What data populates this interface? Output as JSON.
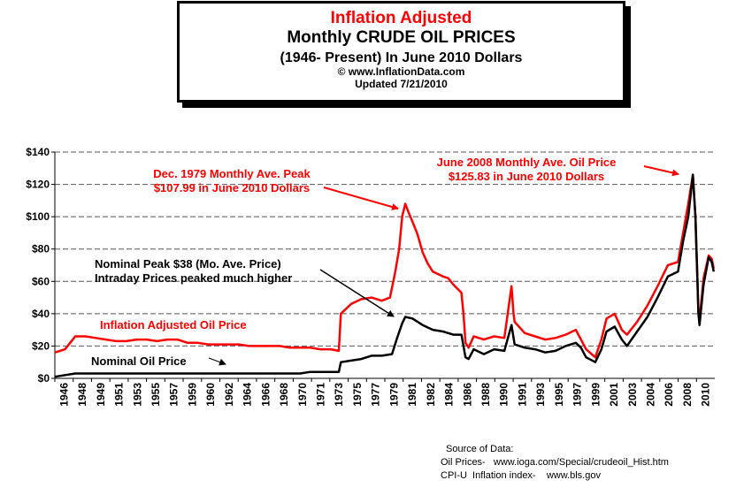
{
  "title": {
    "line1": "Inflation Adjusted",
    "line2": "Monthly CRUDE OIL PRICES",
    "line3": "(1946- Present) In June 2010 Dollars",
    "line4": "© www.InflationData.com",
    "line5": "Updated 7/21/2010"
  },
  "source": {
    "heading": "Source of Data:",
    "oil": "Oil Prices-   www.ioga.com/Special/crudeoil_Hist.htm",
    "cpi": "CPI-U  Inflation index-    www.bls.gov"
  },
  "chart_data": {
    "type": "line",
    "title": "Inflation Adjusted Monthly CRUDE OIL PRICES",
    "xlabel": "",
    "ylabel": "",
    "xlim": [
      1946,
      2010.6
    ],
    "ylim": [
      0,
      140
    ],
    "grid": "horizontal dashed",
    "y_ticks": [
      "$0",
      "$20",
      "$40",
      "$60",
      "$80",
      "$100",
      "$120",
      "$140"
    ],
    "y_tick_values": [
      0,
      20,
      40,
      60,
      80,
      100,
      120,
      140
    ],
    "x_ticks": [
      "1946",
      "1948",
      "1949",
      "1951",
      "1953",
      "1955",
      "1957",
      "1959",
      "1960",
      "1962",
      "1964",
      "1966",
      "1968",
      "1970",
      "1971",
      "1973",
      "1975",
      "1977",
      "1979",
      "1981",
      "1982",
      "1984",
      "1986",
      "1988",
      "1990",
      "1991",
      "1993",
      "1995",
      "1997",
      "1999",
      "2001",
      "2003",
      "2004",
      "2006",
      "2008",
      "2010"
    ],
    "series": [
      {
        "name": "Inflation Adjusted Oil Price",
        "color": "#ff0000",
        "points": [
          [
            1946.0,
            16
          ],
          [
            1946.5,
            17
          ],
          [
            1947.0,
            18
          ],
          [
            1947.5,
            22
          ],
          [
            1948.0,
            26
          ],
          [
            1949.0,
            26
          ],
          [
            1950.0,
            25
          ],
          [
            1951.0,
            24
          ],
          [
            1952.0,
            23
          ],
          [
            1953.0,
            23
          ],
          [
            1954.0,
            24
          ],
          [
            1955.0,
            24
          ],
          [
            1956.0,
            23
          ],
          [
            1957.0,
            24
          ],
          [
            1958.0,
            24
          ],
          [
            1959.0,
            22
          ],
          [
            1960.0,
            22
          ],
          [
            1961.0,
            21
          ],
          [
            1962.0,
            21
          ],
          [
            1963.0,
            21
          ],
          [
            1964.0,
            21
          ],
          [
            1965.0,
            20
          ],
          [
            1966.0,
            20
          ],
          [
            1967.0,
            20
          ],
          [
            1968.0,
            20
          ],
          [
            1969.0,
            19
          ],
          [
            1970.0,
            19
          ],
          [
            1971.0,
            19
          ],
          [
            1972.0,
            18
          ],
          [
            1973.0,
            18
          ],
          [
            1973.8,
            17
          ],
          [
            1974.0,
            40
          ],
          [
            1974.5,
            43
          ],
          [
            1975.0,
            46
          ],
          [
            1976.0,
            49
          ],
          [
            1977.0,
            50
          ],
          [
            1978.0,
            48
          ],
          [
            1978.8,
            50
          ],
          [
            1979.3,
            65
          ],
          [
            1979.7,
            80
          ],
          [
            1980.0,
            100
          ],
          [
            1980.3,
            108
          ],
          [
            1980.6,
            103
          ],
          [
            1981.0,
            97
          ],
          [
            1981.5,
            89
          ],
          [
            1982.0,
            78
          ],
          [
            1982.5,
            71
          ],
          [
            1983.0,
            66
          ],
          [
            1984.0,
            63
          ],
          [
            1984.5,
            62
          ],
          [
            1985.0,
            58
          ],
          [
            1985.8,
            53
          ],
          [
            1986.0,
            40
          ],
          [
            1986.2,
            22
          ],
          [
            1986.5,
            19
          ],
          [
            1987.0,
            26
          ],
          [
            1988.0,
            24
          ],
          [
            1989.0,
            26
          ],
          [
            1990.0,
            25
          ],
          [
            1990.7,
            57
          ],
          [
            1990.9,
            40
          ],
          [
            1991.0,
            35
          ],
          [
            1992.0,
            28
          ],
          [
            1993.0,
            26
          ],
          [
            1994.0,
            24
          ],
          [
            1995.0,
            25
          ],
          [
            1996.0,
            27
          ],
          [
            1997.0,
            30
          ],
          [
            1997.5,
            24
          ],
          [
            1998.0,
            18
          ],
          [
            1998.9,
            13
          ],
          [
            1999.5,
            24
          ],
          [
            2000.0,
            37
          ],
          [
            2000.8,
            40
          ],
          [
            2001.5,
            30
          ],
          [
            2002.0,
            27
          ],
          [
            2003.0,
            35
          ],
          [
            2004.0,
            45
          ],
          [
            2005.0,
            57
          ],
          [
            2006.0,
            70
          ],
          [
            2007.0,
            72
          ],
          [
            2007.5,
            90
          ],
          [
            2008.0,
            108
          ],
          [
            2008.45,
            126
          ],
          [
            2008.7,
            100
          ],
          [
            2008.9,
            60
          ],
          [
            2009.0,
            40
          ],
          [
            2009.1,
            36
          ],
          [
            2009.5,
            62
          ],
          [
            2010.0,
            76
          ],
          [
            2010.3,
            74
          ],
          [
            2010.5,
            68
          ]
        ]
      },
      {
        "name": "Nominal Oil Price",
        "color": "#000000",
        "points": [
          [
            1946.0,
            1
          ],
          [
            1947.0,
            2
          ],
          [
            1948.0,
            3
          ],
          [
            1950.0,
            3
          ],
          [
            1955.0,
            3
          ],
          [
            1957.0,
            3
          ],
          [
            1958.0,
            3
          ],
          [
            1960.0,
            3
          ],
          [
            1965.0,
            3
          ],
          [
            1969.0,
            3
          ],
          [
            1970.0,
            3
          ],
          [
            1971.0,
            4
          ],
          [
            1973.0,
            4
          ],
          [
            1973.8,
            4
          ],
          [
            1974.0,
            10
          ],
          [
            1975.0,
            11
          ],
          [
            1976.0,
            12
          ],
          [
            1977.0,
            14
          ],
          [
            1978.0,
            14
          ],
          [
            1979.0,
            15
          ],
          [
            1979.5,
            25
          ],
          [
            1980.0,
            34
          ],
          [
            1980.3,
            38
          ],
          [
            1981.0,
            37
          ],
          [
            1981.5,
            35
          ],
          [
            1982.0,
            33
          ],
          [
            1983.0,
            30
          ],
          [
            1984.0,
            29
          ],
          [
            1985.0,
            27
          ],
          [
            1985.8,
            27
          ],
          [
            1986.2,
            13
          ],
          [
            1986.5,
            12
          ],
          [
            1987.0,
            18
          ],
          [
            1988.0,
            15
          ],
          [
            1989.0,
            18
          ],
          [
            1990.0,
            17
          ],
          [
            1990.7,
            33
          ],
          [
            1991.0,
            21
          ],
          [
            1992.0,
            19
          ],
          [
            1993.0,
            18
          ],
          [
            1994.0,
            16
          ],
          [
            1995.0,
            17
          ],
          [
            1996.0,
            20
          ],
          [
            1997.0,
            22
          ],
          [
            1997.5,
            19
          ],
          [
            1998.0,
            13
          ],
          [
            1998.9,
            10
          ],
          [
            1999.5,
            18
          ],
          [
            2000.0,
            29
          ],
          [
            2000.8,
            32
          ],
          [
            2001.5,
            24
          ],
          [
            2002.0,
            20
          ],
          [
            2003.0,
            29
          ],
          [
            2004.0,
            38
          ],
          [
            2005.0,
            50
          ],
          [
            2006.0,
            63
          ],
          [
            2007.0,
            66
          ],
          [
            2007.5,
            85
          ],
          [
            2008.0,
            100
          ],
          [
            2008.45,
            126
          ],
          [
            2008.7,
            100
          ],
          [
            2008.9,
            60
          ],
          [
            2009.0,
            40
          ],
          [
            2009.1,
            33
          ],
          [
            2009.5,
            58
          ],
          [
            2010.0,
            75
          ],
          [
            2010.3,
            72
          ],
          [
            2010.5,
            66
          ]
        ]
      }
    ],
    "annotations": [
      {
        "name": "peak-1979-label",
        "lines": [
          "Dec. 1979 Monthly Ave. Peak",
          "$107.99 in June 2010 Dollars"
        ],
        "color": "#ff0000"
      },
      {
        "name": "peak-2008-label",
        "lines": [
          "June 2008 Monthly Ave. Oil  Price",
          "$125.83 in June 2010 Dollars"
        ],
        "color": "#ff0000"
      },
      {
        "name": "nominal-peak-label",
        "lines": [
          "Nominal Peak $38 (Mo. Ave. Price)",
          "Intraday Prices peaked much higher"
        ],
        "color": "#000000"
      },
      {
        "name": "inflation-adjusted-series-label",
        "lines": [
          "Inflation Adjusted Oil Price"
        ],
        "color": "#ff0000"
      },
      {
        "name": "nominal-series-label",
        "lines": [
          "Nominal Oil Price"
        ],
        "color": "#000000"
      }
    ]
  }
}
